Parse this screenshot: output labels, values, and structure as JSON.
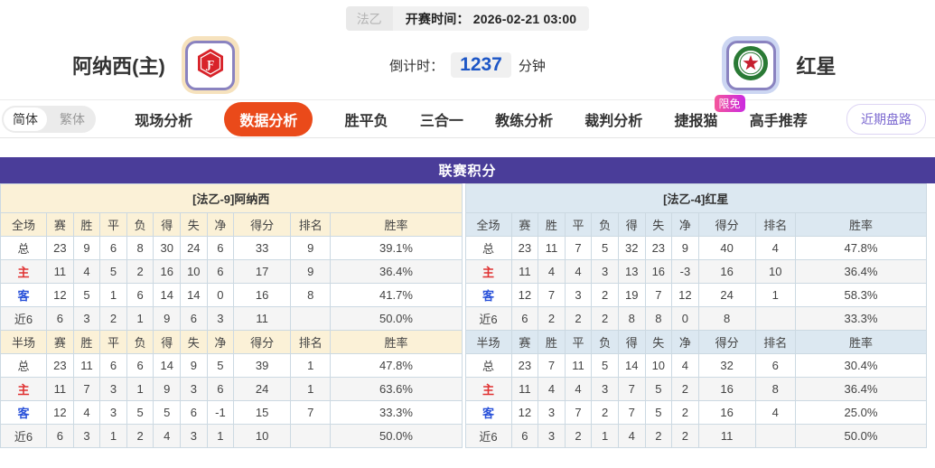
{
  "topbar": {
    "league": "法乙",
    "kickoff_label": "开赛时间：",
    "kickoff_time": "2026-02-21 03:00"
  },
  "header": {
    "home": {
      "name": "阿纳西(主)",
      "logo": "hexagon-crest-icon",
      "badge_color": "#d8232a"
    },
    "away": {
      "name": "红星",
      "logo": "star-ring-crest-icon",
      "ring_color": "#2a7a35",
      "star_color": "#c61f2e"
    },
    "countdown": {
      "label": "倒计时：",
      "value": "1237",
      "unit": "分钟"
    }
  },
  "nav": {
    "lang": {
      "simplified": "简体",
      "traditional": "繁体"
    },
    "tabs": [
      {
        "label": "现场分析"
      },
      {
        "label": "数据分析",
        "active": true
      },
      {
        "label": "胜平负"
      },
      {
        "label": "三合一"
      },
      {
        "label": "教练分析"
      },
      {
        "label": "裁判分析"
      },
      {
        "label": "捷报猫",
        "badge": "限免"
      },
      {
        "label": "高手推荐"
      }
    ],
    "side_button": "近期盘路"
  },
  "section": {
    "title": "联赛积分"
  },
  "standings": {
    "columns_full": [
      "全场",
      "赛",
      "胜",
      "平",
      "负",
      "得",
      "失",
      "净",
      "得分",
      "排名",
      "胜率"
    ],
    "columns_half": [
      "半场",
      "赛",
      "胜",
      "平",
      "负",
      "得",
      "失",
      "净",
      "得分",
      "排名",
      "胜率"
    ],
    "teams": [
      {
        "title": "[法乙-9]阿纳西",
        "theme": "home",
        "full": [
          {
            "label": "总",
            "type": "total",
            "cells": [
              "23",
              "9",
              "6",
              "8",
              "30",
              "24",
              "6",
              "33",
              "9",
              "39.1%"
            ]
          },
          {
            "label": "主",
            "type": "home",
            "cells": [
              "11",
              "4",
              "5",
              "2",
              "16",
              "10",
              "6",
              "17",
              "9",
              "36.4%"
            ]
          },
          {
            "label": "客",
            "type": "away",
            "cells": [
              "12",
              "5",
              "1",
              "6",
              "14",
              "14",
              "0",
              "16",
              "8",
              "41.7%"
            ]
          },
          {
            "label": "近6",
            "type": "recent",
            "cells": [
              "6",
              "3",
              "2",
              "1",
              "9",
              "6",
              "3",
              "11",
              "",
              "50.0%"
            ]
          }
        ],
        "half": [
          {
            "label": "总",
            "type": "total",
            "cells": [
              "23",
              "11",
              "6",
              "6",
              "14",
              "9",
              "5",
              "39",
              "1",
              "47.8%"
            ]
          },
          {
            "label": "主",
            "type": "home",
            "cells": [
              "11",
              "7",
              "3",
              "1",
              "9",
              "3",
              "6",
              "24",
              "1",
              "63.6%"
            ]
          },
          {
            "label": "客",
            "type": "away",
            "cells": [
              "12",
              "4",
              "3",
              "5",
              "5",
              "6",
              "-1",
              "15",
              "7",
              "33.3%"
            ]
          },
          {
            "label": "近6",
            "type": "recent",
            "cells": [
              "6",
              "3",
              "1",
              "2",
              "4",
              "3",
              "1",
              "10",
              "",
              "50.0%"
            ]
          }
        ]
      },
      {
        "title": "[法乙-4]红星",
        "theme": "away",
        "full": [
          {
            "label": "总",
            "type": "total",
            "cells": [
              "23",
              "11",
              "7",
              "5",
              "32",
              "23",
              "9",
              "40",
              "4",
              "47.8%"
            ]
          },
          {
            "label": "主",
            "type": "home",
            "cells": [
              "11",
              "4",
              "4",
              "3",
              "13",
              "16",
              "-3",
              "16",
              "10",
              "36.4%"
            ]
          },
          {
            "label": "客",
            "type": "away",
            "cells": [
              "12",
              "7",
              "3",
              "2",
              "19",
              "7",
              "12",
              "24",
              "1",
              "58.3%"
            ]
          },
          {
            "label": "近6",
            "type": "recent",
            "cells": [
              "6",
              "2",
              "2",
              "2",
              "8",
              "8",
              "0",
              "8",
              "",
              "33.3%"
            ]
          }
        ],
        "half": [
          {
            "label": "总",
            "type": "total",
            "cells": [
              "23",
              "7",
              "11",
              "5",
              "14",
              "10",
              "4",
              "32",
              "6",
              "30.4%"
            ]
          },
          {
            "label": "主",
            "type": "home",
            "cells": [
              "11",
              "4",
              "4",
              "3",
              "7",
              "5",
              "2",
              "16",
              "8",
              "36.4%"
            ]
          },
          {
            "label": "客",
            "type": "away",
            "cells": [
              "12",
              "3",
              "7",
              "2",
              "7",
              "5",
              "2",
              "16",
              "4",
              "25.0%"
            ]
          },
          {
            "label": "近6",
            "type": "recent",
            "cells": [
              "6",
              "3",
              "2",
              "1",
              "4",
              "2",
              "2",
              "11",
              "",
              "50.0%"
            ]
          }
        ]
      }
    ]
  },
  "colors": {
    "section_header": "#4a3d99",
    "active_tab": "#ea4a1a",
    "home_theme": "#fbf1d7",
    "away_theme": "#dce8f1",
    "home_row_label": "#e03232",
    "away_row_label": "#2951d9",
    "badge_gradient_start": "#f5569b",
    "badge_gradient_end": "#cb2be0",
    "countdown_value": "#1d56c6"
  }
}
